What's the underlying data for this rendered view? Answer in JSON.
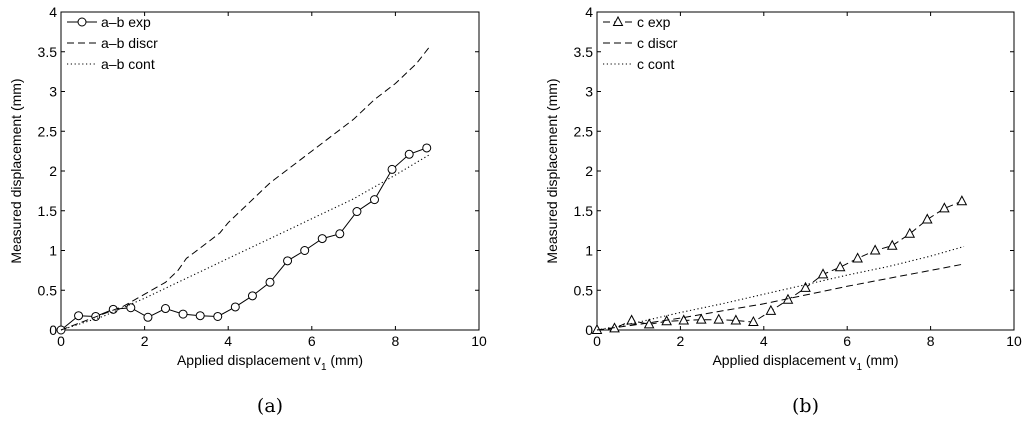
{
  "chart_data": [
    {
      "type": "line",
      "caption": "(a)",
      "xlabel": "Applied displacement v",
      "xlabel_sub": "1",
      "xlabel_unit": " (mm)",
      "ylabel": "Measured displacement (mm)",
      "xlim": [
        0,
        10
      ],
      "ylim": [
        0,
        4
      ],
      "xticks": [
        "0",
        "2",
        "4",
        "6",
        "8",
        "10"
      ],
      "yticks": [
        "0",
        "0.5",
        "1",
        "1.5",
        "2",
        "2.5",
        "3",
        "3.5",
        "4"
      ],
      "grid": false,
      "legend_position": "top-left",
      "series": [
        {
          "name": "a–b exp",
          "style": "solid",
          "marker": "circle",
          "x": [
            0,
            0.42,
            0.83,
            1.25,
            1.67,
            2.08,
            2.5,
            2.92,
            3.33,
            3.75,
            4.17,
            4.58,
            5.0,
            5.42,
            5.83,
            6.25,
            6.67,
            7.08,
            7.5,
            7.92,
            8.33,
            8.75
          ],
          "y": [
            0.0,
            0.18,
            0.17,
            0.26,
            0.28,
            0.16,
            0.27,
            0.2,
            0.18,
            0.17,
            0.29,
            0.43,
            0.6,
            0.87,
            1.0,
            1.15,
            1.21,
            1.49,
            1.64,
            2.02,
            2.21,
            2.29
          ]
        },
        {
          "name": "a–b discr",
          "style": "dashed",
          "x": [
            0,
            0.5,
            1.0,
            1.5,
            2.0,
            2.5,
            2.8,
            3.0,
            3.2,
            3.5,
            3.8,
            4.0,
            4.5,
            5.0,
            5.5,
            6.0,
            6.5,
            7.0,
            7.5,
            8.0,
            8.5,
            8.8
          ],
          "y": [
            0.0,
            0.1,
            0.2,
            0.3,
            0.45,
            0.6,
            0.75,
            0.9,
            0.98,
            1.1,
            1.22,
            1.35,
            1.6,
            1.85,
            2.05,
            2.25,
            2.45,
            2.65,
            2.9,
            3.1,
            3.35,
            3.55
          ]
        },
        {
          "name": "a–b cont",
          "style": "dotted",
          "x": [
            0,
            1.0,
            2.0,
            3.0,
            4.0,
            5.0,
            6.0,
            7.0,
            8.0,
            8.8
          ],
          "y": [
            0.0,
            0.17,
            0.4,
            0.65,
            0.9,
            1.15,
            1.4,
            1.65,
            1.95,
            2.2
          ]
        }
      ]
    },
    {
      "type": "line",
      "caption": "(b)",
      "xlabel": "Applied displacement v",
      "xlabel_sub": "1",
      "xlabel_unit": " (mm)",
      "ylabel": "Measured displacement (mm)",
      "xlim": [
        0,
        10
      ],
      "ylim": [
        0,
        4
      ],
      "xticks": [
        "0",
        "2",
        "4",
        "6",
        "8",
        "10"
      ],
      "yticks": [
        "0",
        "0.5",
        "1",
        "1.5",
        "2",
        "2.5",
        "3",
        "3.5",
        "4"
      ],
      "grid": false,
      "legend_position": "top-left",
      "series": [
        {
          "name": "c exp",
          "style": "dashed",
          "marker": "triangle",
          "x": [
            0,
            0.42,
            0.83,
            1.25,
            1.67,
            2.08,
            2.5,
            2.92,
            3.33,
            3.75,
            4.17,
            4.58,
            5.0,
            5.42,
            5.83,
            6.25,
            6.67,
            7.08,
            7.5,
            7.92,
            8.33,
            8.75
          ],
          "y": [
            0.0,
            0.02,
            0.12,
            0.07,
            0.11,
            0.12,
            0.13,
            0.13,
            0.12,
            0.1,
            0.24,
            0.38,
            0.53,
            0.7,
            0.79,
            0.9,
            1.0,
            1.06,
            1.21,
            1.39,
            1.53,
            1.62
          ]
        },
        {
          "name": "c discr",
          "style": "dashed",
          "x": [
            0,
            1.0,
            2.0,
            3.0,
            4.0,
            5.0,
            6.0,
            7.0,
            8.0,
            8.8
          ],
          "y": [
            0.0,
            0.07,
            0.15,
            0.24,
            0.33,
            0.44,
            0.55,
            0.65,
            0.75,
            0.83
          ]
        },
        {
          "name": "c cont",
          "style": "dotted",
          "x": [
            0,
            1.0,
            2.0,
            3.0,
            4.0,
            5.0,
            6.0,
            7.0,
            8.0,
            8.8
          ],
          "y": [
            0.0,
            0.1,
            0.22,
            0.33,
            0.45,
            0.57,
            0.69,
            0.8,
            0.93,
            1.05
          ]
        }
      ]
    }
  ]
}
